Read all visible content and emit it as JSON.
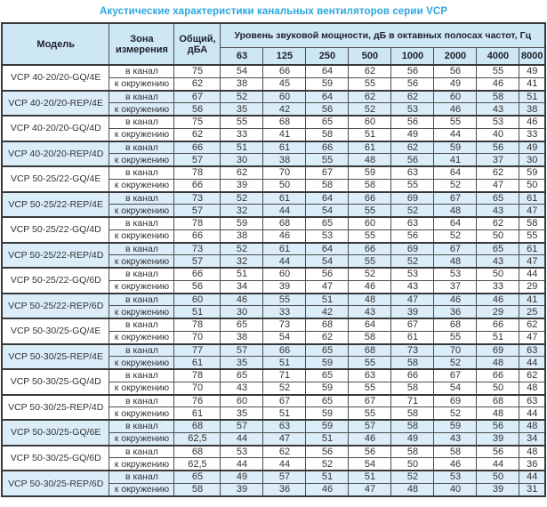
{
  "title": "Акустические характеристики канальных вентиляторов  серии VCP",
  "colors": {
    "title_blue": "#2BA7DF",
    "header_bg": "#CDE7F5",
    "shaded_row_bg": "#DAEDF8",
    "border": "#4E4E4E"
  },
  "table": {
    "header": {
      "model": "Модель",
      "zone": "Зона измерения",
      "total": "Общий, дБА",
      "octave_title": "Уровень звуковой мощности, дБ в октавных полосах частот, Гц",
      "frequencies": [
        "63",
        "125",
        "250",
        "500",
        "1000",
        "2000",
        "4000",
        "8000"
      ]
    },
    "zone_labels": {
      "duct": "в канал",
      "env": "к окружению"
    },
    "rows": [
      {
        "model": "VCP 40-20/20-GQ/4E",
        "shaded": false,
        "duct": {
          "total": "75",
          "bands": [
            "54",
            "66",
            "64",
            "62",
            "56",
            "56",
            "55",
            "49"
          ]
        },
        "env": {
          "total": "62",
          "bands": [
            "38",
            "45",
            "59",
            "55",
            "56",
            "49",
            "46",
            "41"
          ]
        }
      },
      {
        "model": "VCP 40-20/20-REP/4E",
        "shaded": true,
        "duct": {
          "total": "67",
          "bands": [
            "52",
            "60",
            "64",
            "62",
            "62",
            "60",
            "58",
            "51"
          ]
        },
        "env": {
          "total": "56",
          "bands": [
            "35",
            "42",
            "56",
            "52",
            "53",
            "46",
            "43",
            "38"
          ]
        }
      },
      {
        "model": "VCP 40-20/20-GQ/4D",
        "shaded": false,
        "duct": {
          "total": "75",
          "bands": [
            "55",
            "68",
            "65",
            "60",
            "56",
            "55",
            "53",
            "46"
          ]
        },
        "env": {
          "total": "62",
          "bands": [
            "33",
            "41",
            "58",
            "51",
            "49",
            "44",
            "40",
            "33"
          ]
        }
      },
      {
        "model": "VCP 40-20/20-REP/4D",
        "shaded": true,
        "duct": {
          "total": "66",
          "bands": [
            "51",
            "61",
            "66",
            "61",
            "62",
            "59",
            "56",
            "49"
          ]
        },
        "env": {
          "total": "57",
          "bands": [
            "30",
            "38",
            "55",
            "48",
            "56",
            "41",
            "37",
            "30"
          ]
        }
      },
      {
        "model": "VCP 50-25/22-GQ/4E",
        "shaded": false,
        "duct": {
          "total": "78",
          "bands": [
            "62",
            "70",
            "67",
            "59",
            "63",
            "64",
            "62",
            "59"
          ]
        },
        "env": {
          "total": "66",
          "bands": [
            "39",
            "50",
            "58",
            "58",
            "55",
            "52",
            "47",
            "50"
          ]
        }
      },
      {
        "model": "VCP 50-25/22-REP/4E",
        "shaded": true,
        "duct": {
          "total": "73",
          "bands": [
            "52",
            "61",
            "64",
            "66",
            "69",
            "67",
            "65",
            "61"
          ]
        },
        "env": {
          "total": "57",
          "bands": [
            "32",
            "44",
            "54",
            "55",
            "52",
            "48",
            "43",
            "47"
          ]
        }
      },
      {
        "model": "VCP 50-25/22-GQ/4D",
        "shaded": false,
        "duct": {
          "total": "78",
          "bands": [
            "59",
            "68",
            "65",
            "60",
            "63",
            "64",
            "62",
            "58"
          ]
        },
        "env": {
          "total": "66",
          "bands": [
            "38",
            "46",
            "53",
            "55",
            "56",
            "52",
            "50",
            "55"
          ]
        }
      },
      {
        "model": "VCP 50-25/22-REP/4D",
        "shaded": true,
        "duct": {
          "total": "73",
          "bands": [
            "52",
            "61",
            "64",
            "66",
            "69",
            "67",
            "65",
            "61"
          ]
        },
        "env": {
          "total": "57",
          "bands": [
            "32",
            "44",
            "54",
            "55",
            "52",
            "48",
            "43",
            "47"
          ]
        }
      },
      {
        "model": "VCP 50-25/22-GQ/6D",
        "shaded": false,
        "duct": {
          "total": "66",
          "bands": [
            "51",
            "60",
            "56",
            "52",
            "53",
            "53",
            "50",
            "44"
          ]
        },
        "env": {
          "total": "56",
          "bands": [
            "34",
            "39",
            "47",
            "46",
            "43",
            "37",
            "33",
            "29"
          ]
        }
      },
      {
        "model": "VCP 50-25/22-REP/6D",
        "shaded": true,
        "duct": {
          "total": "60",
          "bands": [
            "46",
            "55",
            "51",
            "48",
            "47",
            "46",
            "46",
            "41"
          ]
        },
        "env": {
          "total": "51",
          "bands": [
            "30",
            "33",
            "42",
            "43",
            "39",
            "36",
            "29",
            "25"
          ]
        }
      },
      {
        "model": "VCP 50-30/25-GQ/4E",
        "shaded": false,
        "duct": {
          "total": "78",
          "bands": [
            "65",
            "73",
            "68",
            "64",
            "67",
            "68",
            "66",
            "62"
          ]
        },
        "env": {
          "total": "70",
          "bands": [
            "38",
            "54",
            "62",
            "58",
            "61",
            "55",
            "51",
            "47"
          ]
        }
      },
      {
        "model": "VCP 50-30/25-REP/4E",
        "shaded": true,
        "duct": {
          "total": "77",
          "bands": [
            "57",
            "66",
            "65",
            "68",
            "73",
            "70",
            "69",
            "63"
          ]
        },
        "env": {
          "total": "61",
          "bands": [
            "35",
            "51",
            "59",
            "55",
            "58",
            "52",
            "48",
            "44"
          ]
        }
      },
      {
        "model": "VCP 50-30/25-GQ/4D",
        "shaded": false,
        "duct": {
          "total": "78",
          "bands": [
            "65",
            "71",
            "65",
            "63",
            "66",
            "67",
            "66",
            "62"
          ]
        },
        "env": {
          "total": "70",
          "bands": [
            "43",
            "52",
            "59",
            "55",
            "58",
            "54",
            "50",
            "48"
          ]
        }
      },
      {
        "model": "VCP 50-30/25-REP/4D",
        "shaded": false,
        "duct": {
          "total": "76",
          "bands": [
            "60",
            "67",
            "65",
            "67",
            "71",
            "69",
            "68",
            "63"
          ]
        },
        "env": {
          "total": "61",
          "bands": [
            "35",
            "51",
            "59",
            "55",
            "58",
            "52",
            "48",
            "44"
          ]
        }
      },
      {
        "model": "VCP 50-30/25-GQ/6E",
        "shaded": true,
        "duct": {
          "total": "68",
          "bands": [
            "57",
            "63",
            "59",
            "57",
            "58",
            "59",
            "56",
            "48"
          ]
        },
        "env": {
          "total": "62,5",
          "bands": [
            "44",
            "47",
            "51",
            "46",
            "49",
            "43",
            "39",
            "34"
          ]
        }
      },
      {
        "model": "VCP 50-30/25-GQ/6D",
        "shaded": false,
        "duct": {
          "total": "68",
          "bands": [
            "53",
            "62",
            "56",
            "56",
            "58",
            "58",
            "56",
            "48"
          ]
        },
        "env": {
          "total": "62,5",
          "bands": [
            "44",
            "44",
            "52",
            "54",
            "50",
            "46",
            "44",
            "36"
          ]
        }
      },
      {
        "model": "VCP 50-30/25-REP/6D",
        "shaded": true,
        "duct": {
          "total": "65",
          "bands": [
            "49",
            "57",
            "51",
            "51",
            "52",
            "53",
            "50",
            "44"
          ]
        },
        "env": {
          "total": "58",
          "bands": [
            "39",
            "36",
            "46",
            "47",
            "48",
            "40",
            "39",
            "31"
          ]
        }
      }
    ]
  }
}
